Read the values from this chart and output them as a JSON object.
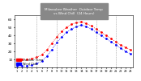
{
  "title": "Milwaukee Weather  Outdoor Temp\nvs Wind Chill\n(24 Hours)",
  "title_color": "#000000",
  "bg_color": "#ffffff",
  "title_bg": "#cccccc",
  "legend_labels": [
    "Outdoor Temp",
    "Wind Chill"
  ],
  "legend_colors": [
    "#ff0000",
    "#0000ff"
  ],
  "temp_color": "#ff0000",
  "windchill_color": "#0000ff",
  "hours": [
    1,
    2,
    3,
    4,
    5,
    6,
    7,
    8,
    9,
    10,
    11,
    12,
    13,
    14,
    15,
    16,
    17,
    18,
    19,
    20,
    21,
    22,
    23,
    24
  ],
  "temp": [
    10,
    10,
    10,
    11,
    13,
    16,
    22,
    30,
    38,
    45,
    50,
    54,
    56,
    57,
    55,
    52,
    48,
    44,
    40,
    36,
    32,
    28,
    25,
    22
  ],
  "windchill": [
    2,
    2,
    2,
    3,
    5,
    8,
    14,
    22,
    31,
    38,
    44,
    48,
    51,
    53,
    51,
    48,
    44,
    40,
    36,
    32,
    28,
    24,
    20,
    17
  ],
  "ylim": [
    0,
    65
  ],
  "yticks": [
    10,
    20,
    30,
    40,
    50,
    60
  ],
  "xlabel": "",
  "ylabel": ""
}
